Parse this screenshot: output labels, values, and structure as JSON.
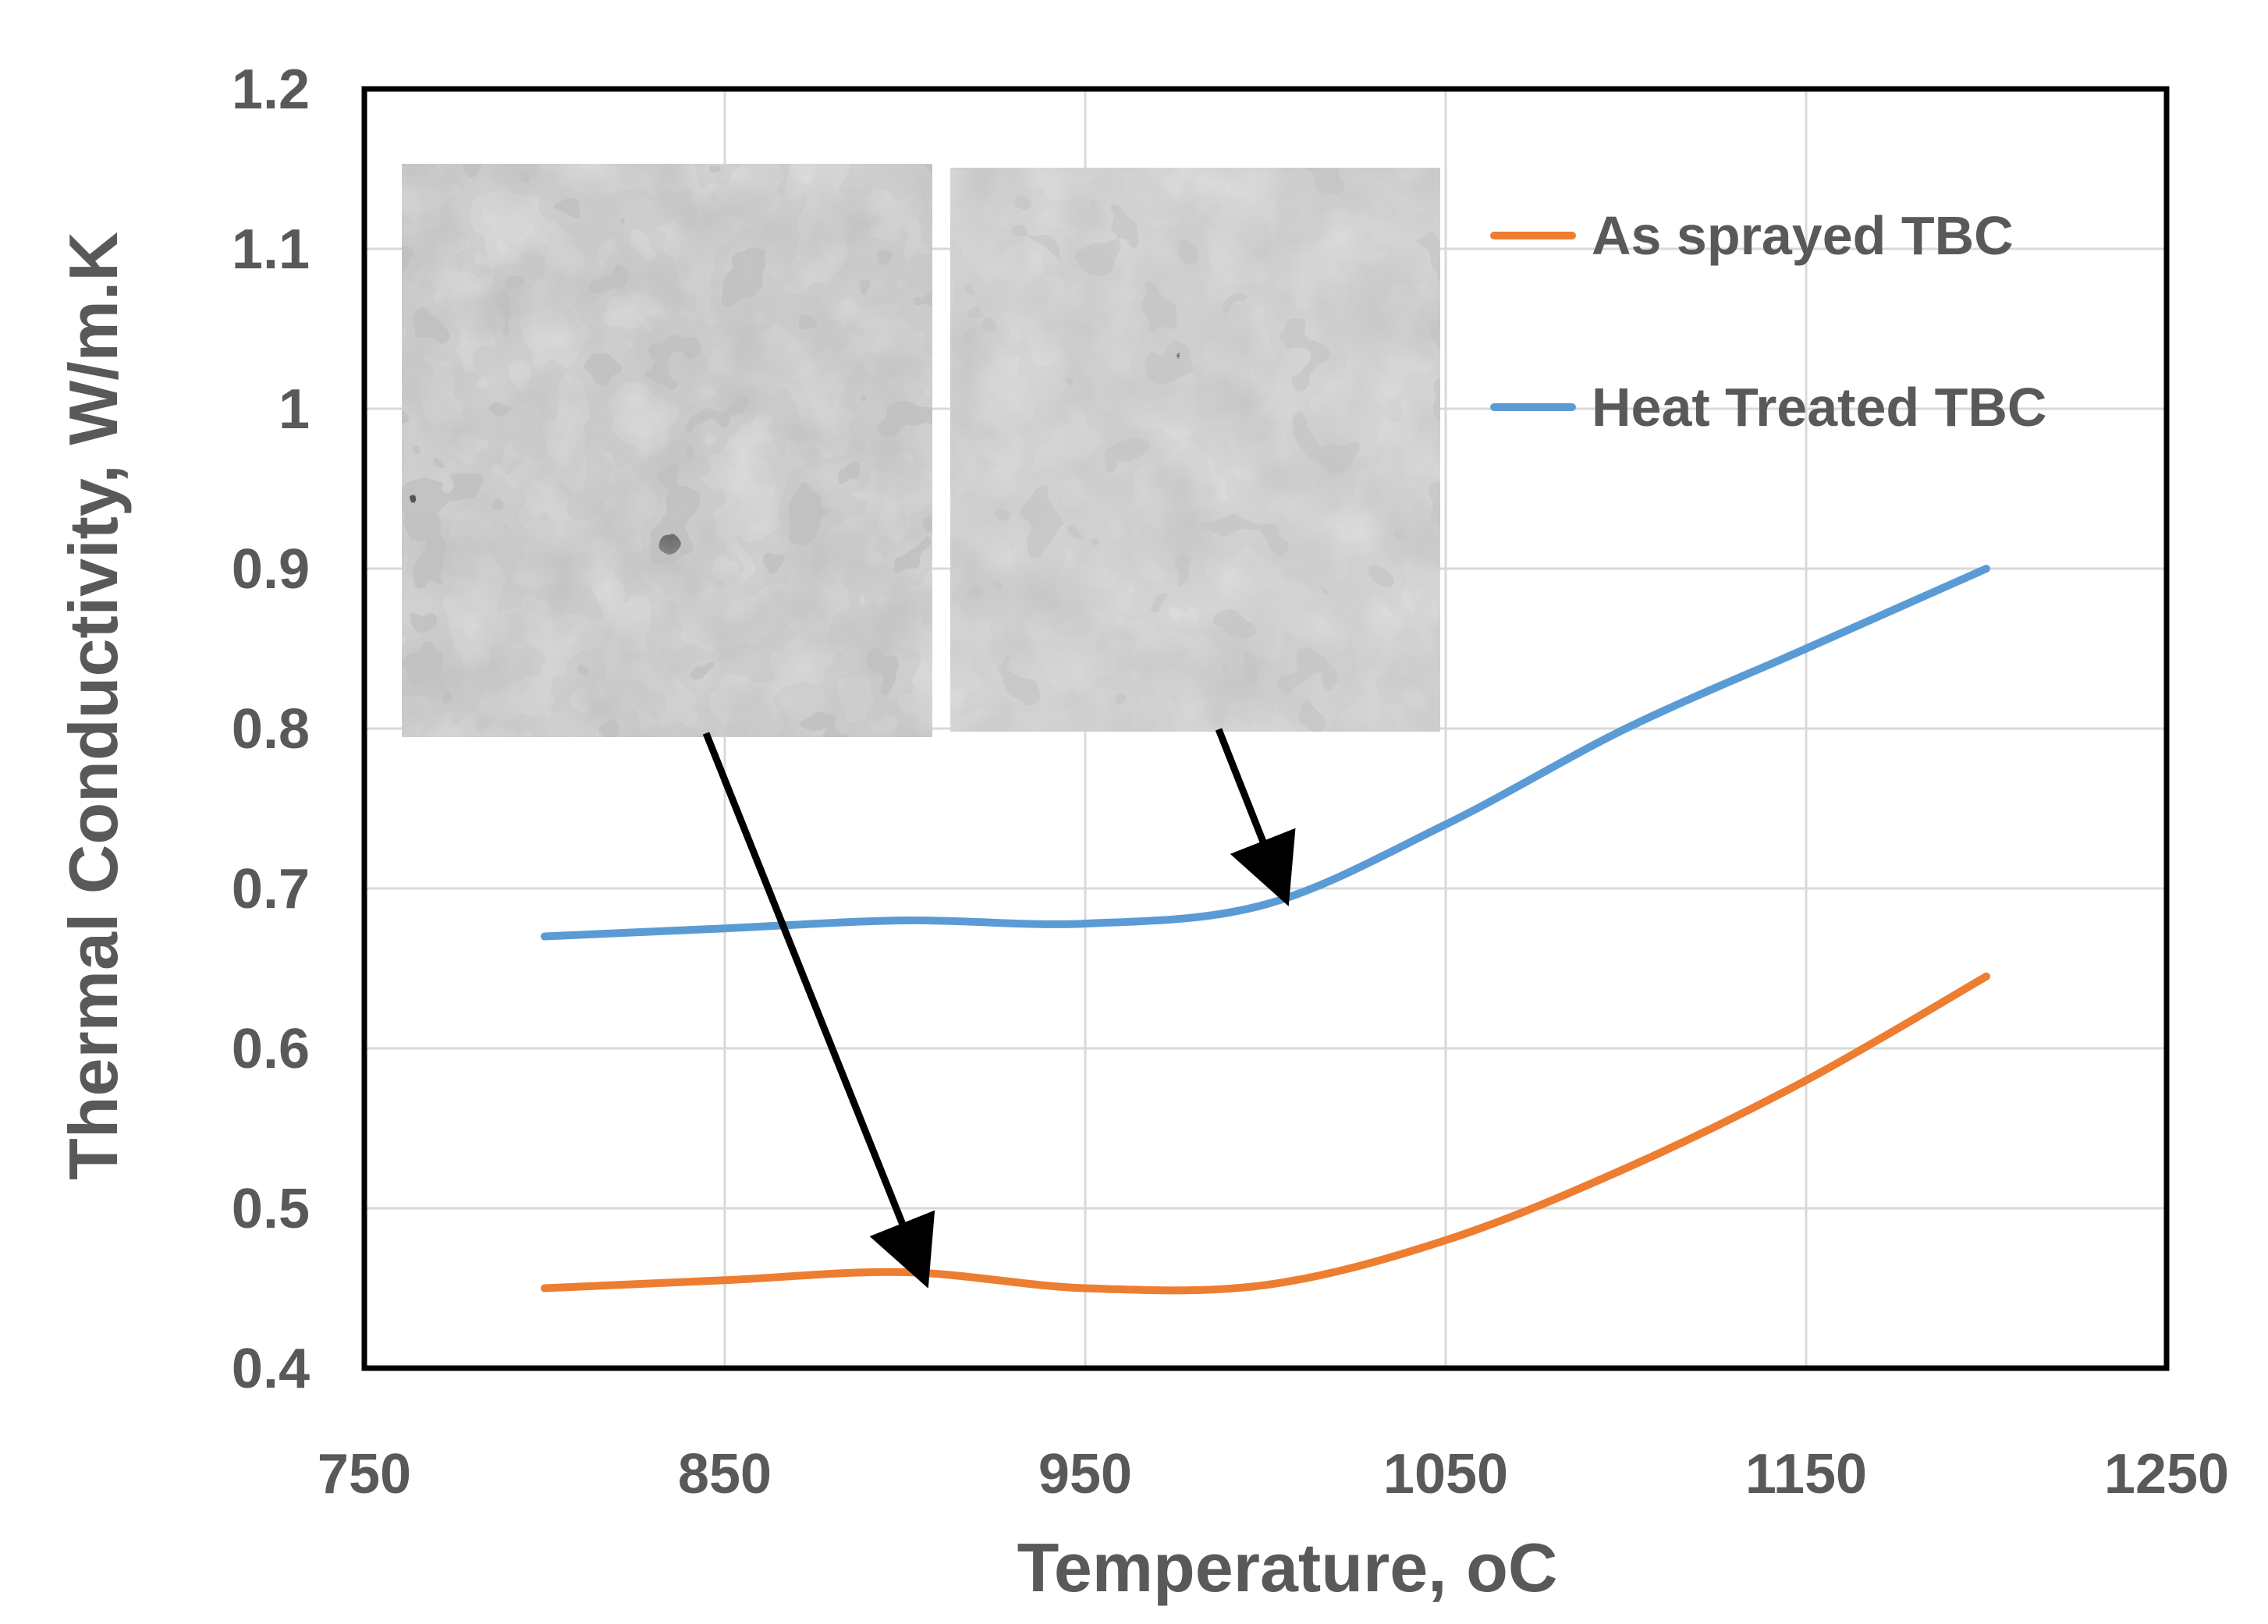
{
  "chart_data": {
    "type": "line",
    "title": "",
    "xlabel": "Temperature, ",
    "xlabel_unit": "oC",
    "ylabel": "Thermal Conductivity, W/m.K",
    "xlim": [
      750,
      1250
    ],
    "ylim": [
      0.4,
      1.2
    ],
    "x_ticks": [
      750,
      850,
      950,
      1050,
      1150,
      1250
    ],
    "y_ticks": [
      0.4,
      0.5,
      0.6,
      0.7,
      0.8,
      0.9,
      1,
      1.1,
      1.2
    ],
    "x_tick_labels": [
      "750",
      "850",
      "950",
      "1050",
      "1150",
      "1250"
    ],
    "y_tick_labels": [
      "0.4",
      "0.5",
      "0.6",
      "0.7",
      "0.8",
      "0.9",
      "1",
      "1.1",
      "1.2"
    ],
    "grid": true,
    "legend_position": "top-right",
    "series": [
      {
        "name": "As sprayed TBC",
        "color": "#ed7d31",
        "x": [
          800,
          850,
          900,
          950,
          1000,
          1050,
          1100,
          1150,
          1200
        ],
        "y": [
          0.45,
          0.455,
          0.46,
          0.45,
          0.452,
          0.48,
          0.525,
          0.58,
          0.645
        ]
      },
      {
        "name": "Heat Treated TBC",
        "color": "#5b9bd5",
        "x": [
          800,
          850,
          900,
          950,
          1000,
          1050,
          1100,
          1150,
          1200
        ],
        "y": [
          0.67,
          0.675,
          0.68,
          0.678,
          0.69,
          0.74,
          0.8,
          0.85,
          0.9
        ]
      }
    ],
    "annotations": [
      {
        "type": "arrow",
        "from": "micrograph-left",
        "to_series": "As sprayed TBC",
        "to_x": 905,
        "to_y": 0.458
      },
      {
        "type": "arrow",
        "from": "micrograph-right",
        "to_series": "Heat Treated TBC",
        "to_x": 1005,
        "to_y": 0.697
      }
    ],
    "insets": [
      {
        "name": "micrograph-left",
        "description_icon": "micrograph-image"
      },
      {
        "name": "micrograph-right",
        "description_icon": "micrograph-image"
      }
    ]
  }
}
